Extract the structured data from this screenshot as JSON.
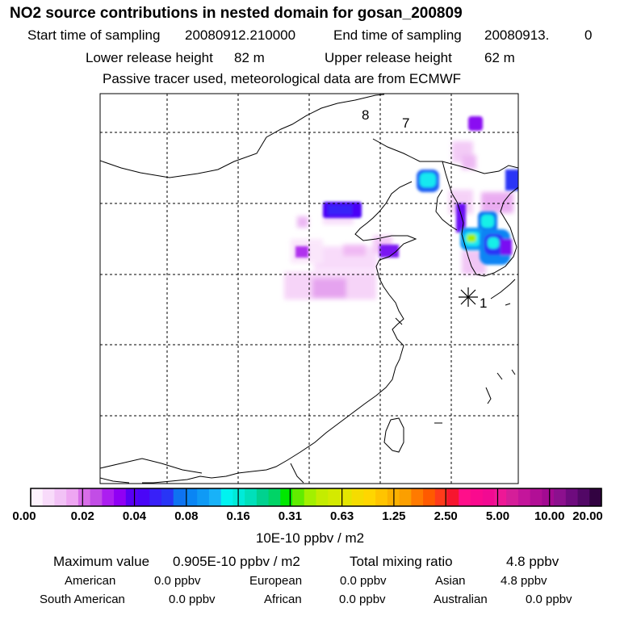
{
  "header": {
    "title": "NO2 source contributions in nested domain for gosan_200809",
    "start_label": "Start time of sampling",
    "start_value": "20080912.210000",
    "end_label": "End time of sampling",
    "end_value": "20080913.",
    "end_suffix": "0",
    "lower_label": "Lower release height",
    "lower_value": "82 m",
    "upper_label": "Upper release height",
    "upper_value": "62 m",
    "tracer_note": "Passive tracer used, meteorological data are from ECMWF"
  },
  "chart_data": {
    "type": "heatmap",
    "units": "10E-10 ppbv / m2",
    "markers": [
      {
        "label": "8",
        "kind": "trajectory-point"
      },
      {
        "label": "7",
        "kind": "trajectory-point"
      },
      {
        "label": "1",
        "kind": "receptor-star"
      }
    ],
    "legend_ticks": [
      "0.00",
      "0.02",
      "0.04",
      "0.08",
      "0.16",
      "0.31",
      "0.63",
      "1.25",
      "2.50",
      "5.00",
      "10.00",
      "20.00"
    ],
    "legend_colors": [
      "#fdf2fd",
      "#f8dbfa",
      "#f2c2f6",
      "#eea6f2",
      "#d86de8",
      "#c24de6",
      "#ac1ef0",
      "#9000f4",
      "#5900f4",
      "#4a06f7",
      "#3820f8",
      "#2835f6",
      "#0e73f1",
      "#0a85f4",
      "#0f9af5",
      "#18b2f8",
      "#00f3f0",
      "#00ebd9",
      "#00e0ba",
      "#00d28f",
      "#00d466",
      "#00e800",
      "#61ec00",
      "#a2f000",
      "#c4ec00",
      "#d4ea00",
      "#e4e500",
      "#f5dc00",
      "#ffd600",
      "#ffc400",
      "#fbb100",
      "#fb9f00",
      "#ff7a00",
      "#ff5a00",
      "#ff3b1a",
      "#f6162f",
      "#ff0f8a",
      "#fa0a8e",
      "#f20a92",
      "#ee1896",
      "#d51e99",
      "#c4159b",
      "#b20f96",
      "#a30a92",
      "#8c108e",
      "#6e0b7e",
      "#520866",
      "#320341"
    ],
    "cells": [
      {
        "lat": 43.0,
        "lon": 127.9,
        "value": 0.06,
        "color": "#7a10f2"
      },
      {
        "lat": 40.6,
        "lon": 125.7,
        "value": 0.25,
        "color": "#13e8f0"
      },
      {
        "lat": 40.5,
        "lon": 125.6,
        "value": 0.06,
        "color": "#2a35f6"
      },
      {
        "lat": 39.3,
        "lon": 115.5,
        "value": 0.05,
        "color": "#4a06f7"
      },
      {
        "lat": 37.6,
        "lon": 126.9,
        "value": 0.12,
        "color": "#0e73f1"
      },
      {
        "lat": 37.3,
        "lon": 127.1,
        "value": 0.9,
        "color": "#a2f000"
      },
      {
        "lat": 37.1,
        "lon": 128.2,
        "value": 0.1,
        "color": "#0a85f4"
      },
      {
        "lat": 36.6,
        "lon": 127.6,
        "value": 0.25,
        "color": "#14f0e8"
      },
      {
        "lat": 37.7,
        "lon": 120.8,
        "value": 0.06,
        "color": "#6a0af4"
      },
      {
        "lat": 37.8,
        "lon": 114.2,
        "value": 0.04,
        "color": "#a810ee"
      },
      {
        "lat": 36.4,
        "lon": 115.9,
        "value": 0.03,
        "color": "#e06de8"
      },
      {
        "lat": 34.9,
        "lon": 115.2,
        "value": 0.02,
        "color": "#f2c2f6"
      },
      {
        "lat": 35.7,
        "lon": 114.6,
        "value": 0.02,
        "color": "#eea6f2"
      }
    ]
  },
  "legend": {
    "units": "10E-10 ppbv / m2"
  },
  "summary": {
    "max_label": "Maximum value",
    "max_value": "0.905E-10 ppbv / m2",
    "total_label": "Total mixing ratio",
    "total_value": "4.8 ppbv",
    "regions": [
      {
        "name": "American",
        "value": "0.0 ppbv"
      },
      {
        "name": "European",
        "value": "0.0 ppbv"
      },
      {
        "name": "Asian",
        "value": "4.8 ppbv"
      },
      {
        "name": "South American",
        "value": "0.0 ppbv"
      },
      {
        "name": "African",
        "value": "0.0 ppbv"
      },
      {
        "name": "Australian",
        "value": "0.0 ppbv"
      }
    ]
  }
}
